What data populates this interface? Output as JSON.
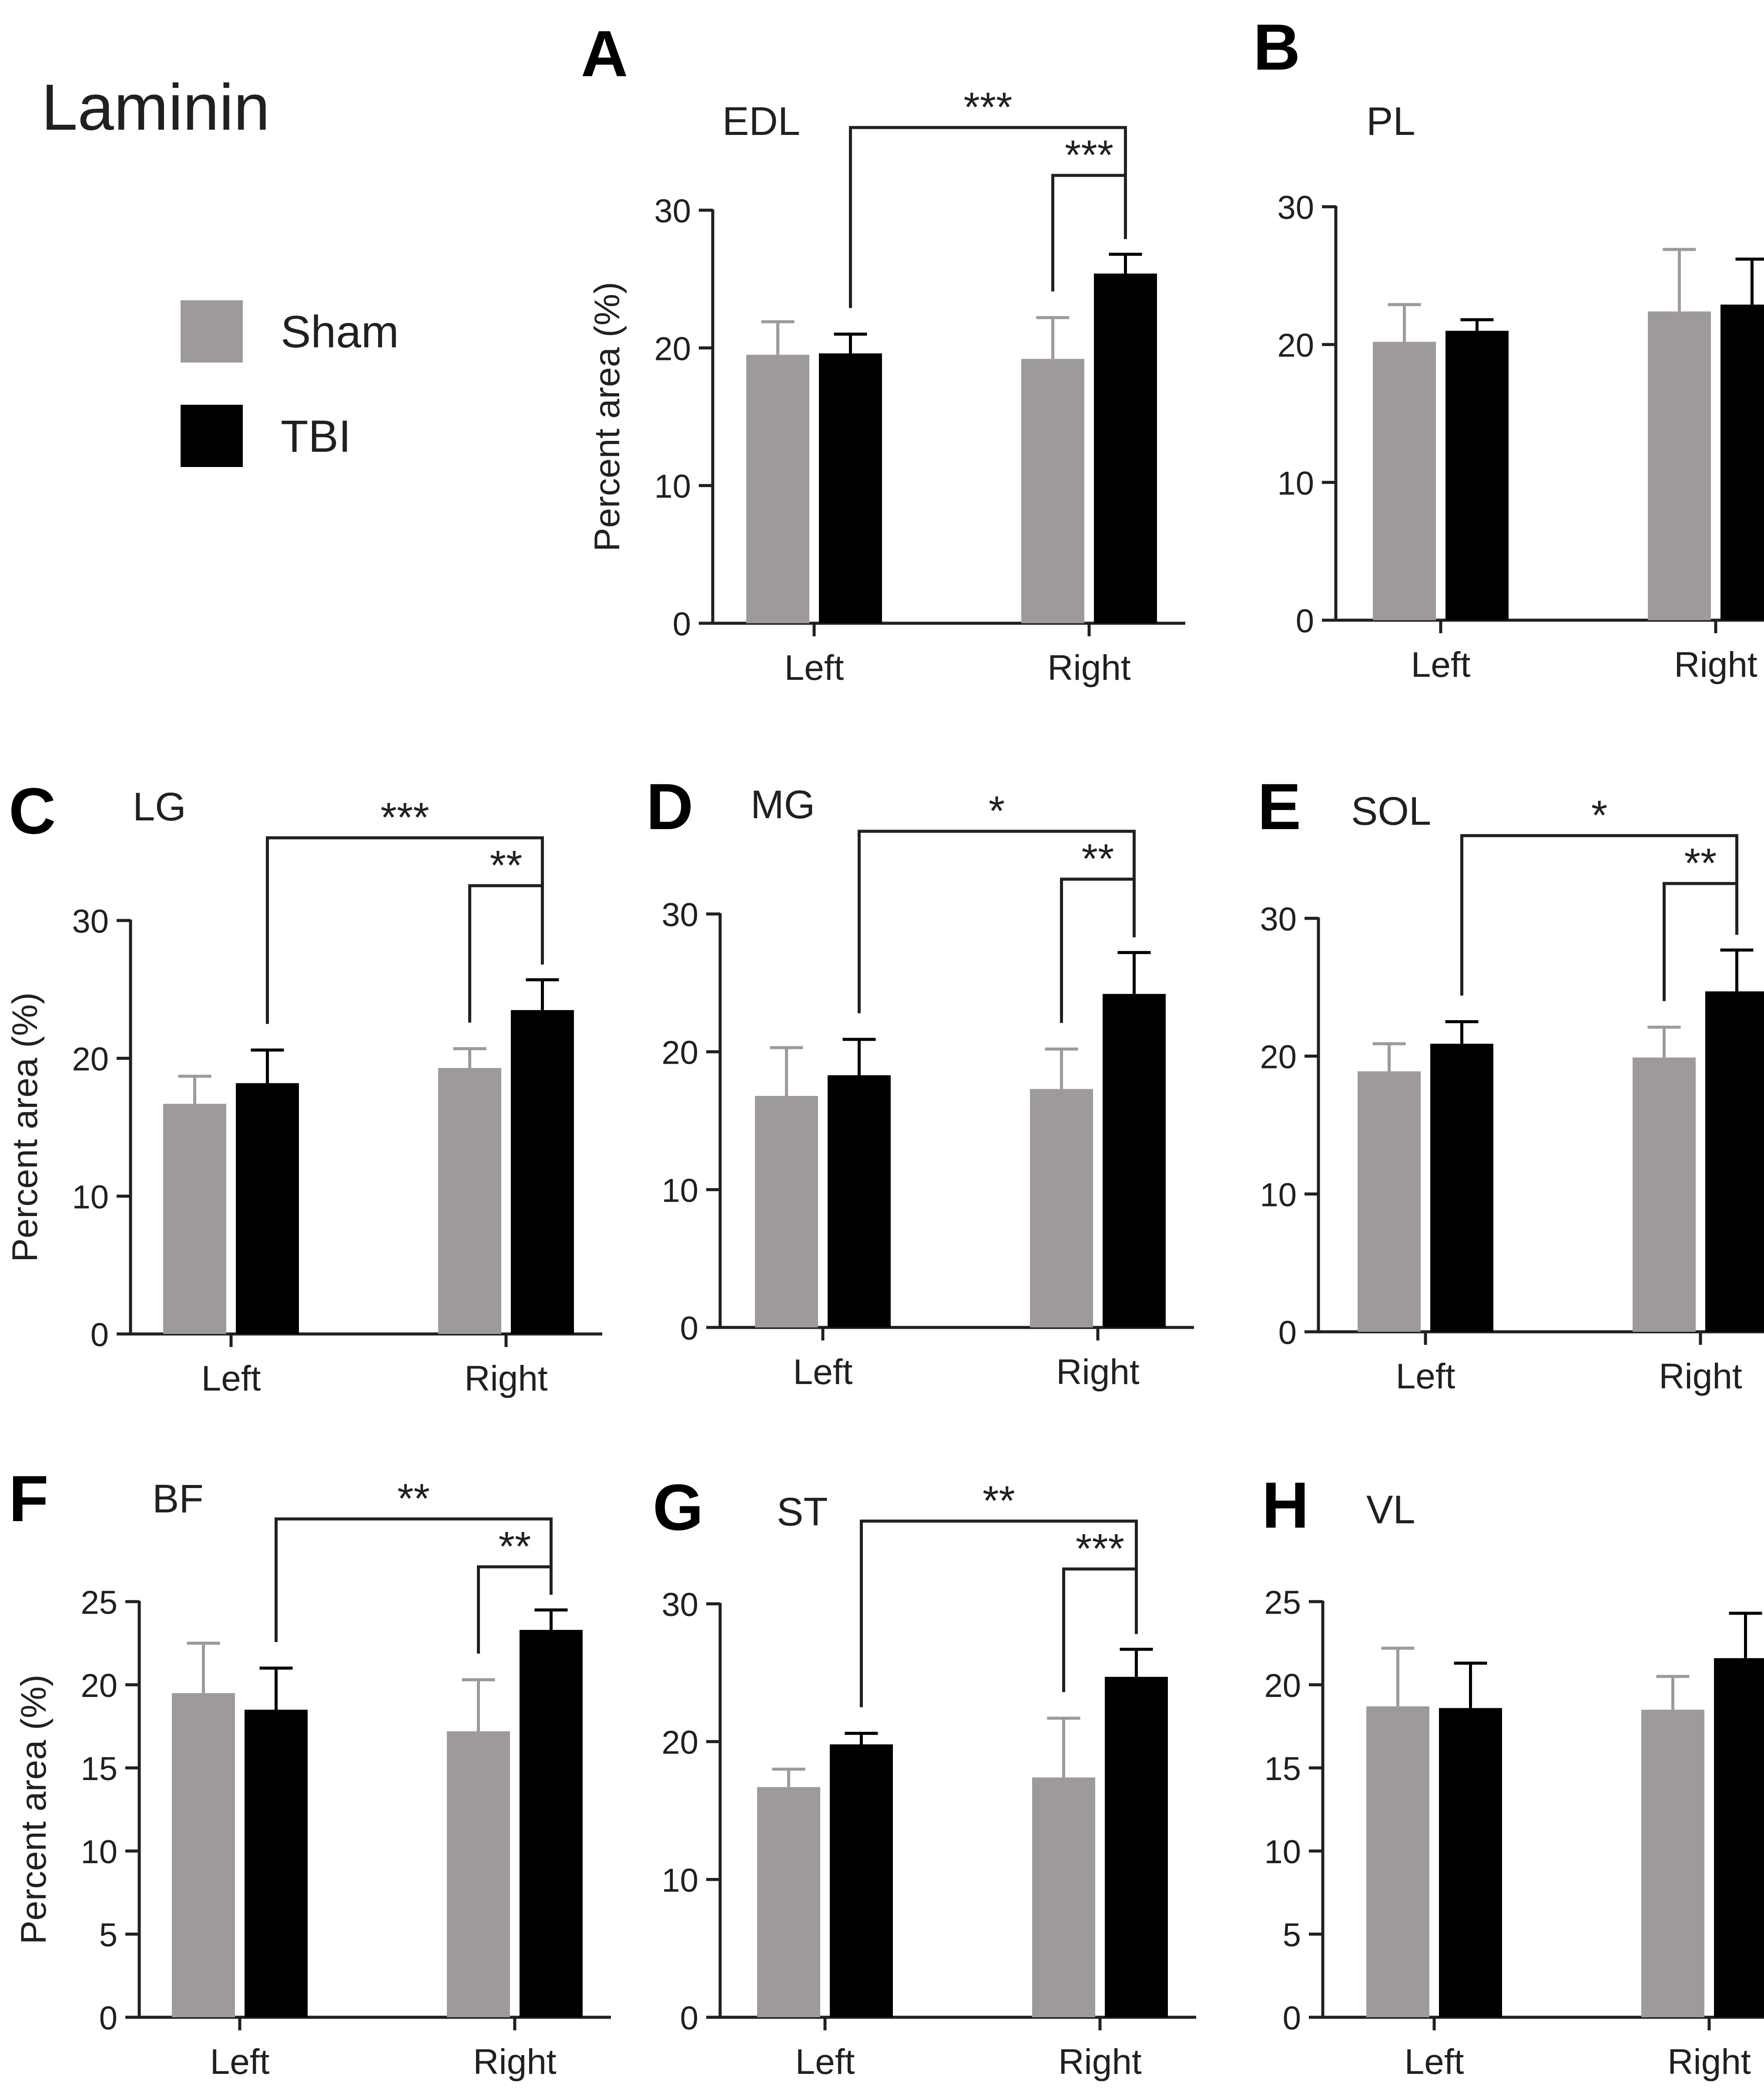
{
  "figure": {
    "title": "Laminin"
  },
  "legend": {
    "items": [
      {
        "name": "Sham",
        "color": "#9e9a99"
      },
      {
        "name": "TBI",
        "color": "#000000"
      }
    ]
  },
  "chart_data": [
    {
      "type": "bar",
      "panel": "A",
      "title": "EDL",
      "ylabel": "Percent area (%)",
      "categories": [
        "Left",
        "Right"
      ],
      "ylim": [
        0,
        30
      ],
      "yticks": [
        0,
        10,
        20,
        30
      ],
      "series": [
        {
          "name": "Sham",
          "values": [
            19.5,
            19.2
          ],
          "errors": [
            2.4,
            3.0
          ]
        },
        {
          "name": "TBI",
          "values": [
            19.6,
            25.4
          ],
          "errors": [
            1.4,
            1.4
          ]
        }
      ],
      "significance": [
        {
          "label": "***",
          "from": "Left TBI",
          "to": "Right TBI"
        },
        {
          "label": "***",
          "from": "Right Sham",
          "to": "Right TBI"
        }
      ]
    },
    {
      "type": "bar",
      "panel": "B",
      "title": "PL",
      "ylabel": "",
      "categories": [
        "Left",
        "Right"
      ],
      "ylim": [
        0,
        30
      ],
      "yticks": [
        0,
        10,
        20,
        30
      ],
      "series": [
        {
          "name": "Sham",
          "values": [
            20.2,
            22.4
          ],
          "errors": [
            2.7,
            4.5
          ]
        },
        {
          "name": "TBI",
          "values": [
            21.0,
            22.9
          ],
          "errors": [
            0.8,
            3.3
          ]
        }
      ],
      "significance": []
    },
    {
      "type": "bar",
      "panel": "C",
      "title": "LG",
      "ylabel": "Percent area (%)",
      "categories": [
        "Left",
        "Right"
      ],
      "ylim": [
        0,
        30
      ],
      "yticks": [
        0,
        10,
        20,
        30
      ],
      "series": [
        {
          "name": "Sham",
          "values": [
            16.7,
            19.3
          ],
          "errors": [
            2.0,
            1.4
          ]
        },
        {
          "name": "TBI",
          "values": [
            18.2,
            23.5
          ],
          "errors": [
            2.4,
            2.2
          ]
        }
      ],
      "significance": [
        {
          "label": "***",
          "from": "Left TBI",
          "to": "Right TBI"
        },
        {
          "label": "**",
          "from": "Right Sham",
          "to": "Right TBI"
        }
      ]
    },
    {
      "type": "bar",
      "panel": "D",
      "title": "MG",
      "ylabel": "",
      "categories": [
        "Left",
        "Right"
      ],
      "ylim": [
        0,
        30
      ],
      "yticks": [
        0,
        10,
        20,
        30
      ],
      "series": [
        {
          "name": "Sham",
          "values": [
            16.8,
            17.3
          ],
          "errors": [
            3.5,
            2.9
          ]
        },
        {
          "name": "TBI",
          "values": [
            18.3,
            24.2
          ],
          "errors": [
            2.6,
            3.0
          ]
        }
      ],
      "significance": [
        {
          "label": "*",
          "from": "Left TBI",
          "to": "Right TBI"
        },
        {
          "label": "**",
          "from": "Right Sham",
          "to": "Right TBI"
        }
      ]
    },
    {
      "type": "bar",
      "panel": "E",
      "title": "SOL",
      "ylabel": "",
      "categories": [
        "Left",
        "Right"
      ],
      "ylim": [
        0,
        30
      ],
      "yticks": [
        0,
        10,
        20,
        30
      ],
      "series": [
        {
          "name": "Sham",
          "values": [
            18.9,
            19.9
          ],
          "errors": [
            2.0,
            2.2
          ]
        },
        {
          "name": "TBI",
          "values": [
            20.9,
            24.7
          ],
          "errors": [
            1.6,
            3.0
          ]
        }
      ],
      "significance": [
        {
          "label": "*",
          "from": "Left TBI",
          "to": "Right TBI"
        },
        {
          "label": "**",
          "from": "Right Sham",
          "to": "Right TBI"
        }
      ]
    },
    {
      "type": "bar",
      "panel": "F",
      "title": "BF",
      "ylabel": "Percent area (%)",
      "categories": [
        "Left",
        "Right"
      ],
      "ylim": [
        0,
        25
      ],
      "yticks": [
        0,
        5,
        10,
        15,
        20,
        25
      ],
      "series": [
        {
          "name": "Sham",
          "values": [
            19.5,
            17.2
          ],
          "errors": [
            3.0,
            3.1
          ]
        },
        {
          "name": "TBI",
          "values": [
            18.5,
            23.3
          ],
          "errors": [
            2.5,
            1.2
          ]
        }
      ],
      "significance": [
        {
          "label": "**",
          "from": "Left TBI",
          "to": "Right TBI"
        },
        {
          "label": "**",
          "from": "Right Sham",
          "to": "Right TBI"
        }
      ]
    },
    {
      "type": "bar",
      "panel": "G",
      "title": "ST",
      "ylabel": "",
      "categories": [
        "Left",
        "Right"
      ],
      "ylim": [
        0,
        30
      ],
      "yticks": [
        0,
        10,
        20,
        30
      ],
      "series": [
        {
          "name": "Sham",
          "values": [
            16.7,
            17.4
          ],
          "errors": [
            1.3,
            4.3
          ]
        },
        {
          "name": "TBI",
          "values": [
            19.8,
            24.7
          ],
          "errors": [
            0.8,
            2.0
          ]
        }
      ],
      "significance": [
        {
          "label": "**",
          "from": "Left TBI",
          "to": "Right TBI"
        },
        {
          "label": "***",
          "from": "Right Sham",
          "to": "Right TBI"
        }
      ]
    },
    {
      "type": "bar",
      "panel": "H",
      "title": "VL",
      "ylabel": "",
      "categories": [
        "Left",
        "Right"
      ],
      "ylim": [
        0,
        25
      ],
      "yticks": [
        0,
        5,
        10,
        15,
        20,
        25
      ],
      "series": [
        {
          "name": "Sham",
          "values": [
            18.7,
            18.5
          ],
          "errors": [
            3.5,
            2.0
          ]
        },
        {
          "name": "TBI",
          "values": [
            18.6,
            21.6
          ],
          "errors": [
            2.7,
            2.7
          ]
        }
      ],
      "significance": []
    }
  ]
}
